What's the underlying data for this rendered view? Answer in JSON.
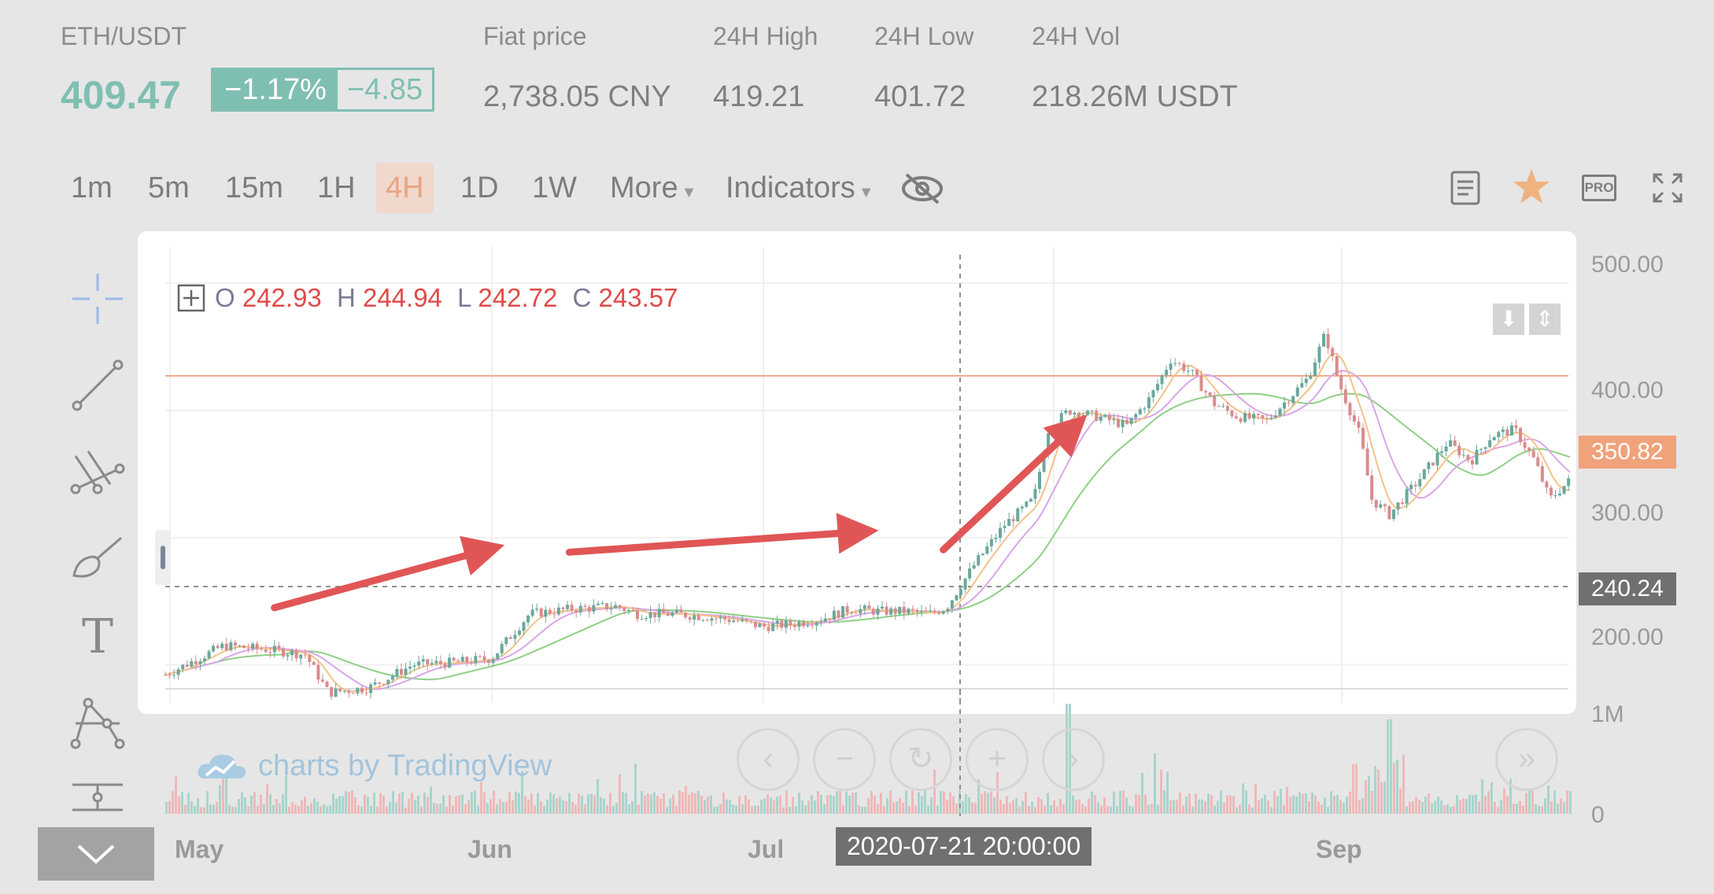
{
  "header": {
    "pair": "ETH/USDT",
    "last_price": "409.47",
    "change_pct": "−1.17%",
    "change_abs": "−4.85",
    "stats": [
      {
        "label": "Fiat price",
        "value": "2,738.05 CNY"
      },
      {
        "label": "24H High",
        "value": "419.21"
      },
      {
        "label": "24H Low",
        "value": "401.72"
      },
      {
        "label": "24H Vol",
        "value": "218.26M USDT"
      }
    ]
  },
  "toolbar": {
    "intervals": [
      "1m",
      "5m",
      "15m",
      "1H",
      "4H",
      "1D",
      "1W"
    ],
    "active_interval": "4H",
    "more_label": "More",
    "indicators_label": "Indicators",
    "right_icons": [
      "notes-icon",
      "star-icon",
      "pro-badge-icon",
      "fullscreen-icon"
    ],
    "pro_text": "PRO"
  },
  "sidebar": {
    "tools": [
      "crosshair-icon",
      "trend-line-icon",
      "pitchfork-icon",
      "brush-icon",
      "text-icon",
      "pattern-icon",
      "measure-icon"
    ],
    "text_tool_glyph": "T"
  },
  "chart": {
    "ohlc": {
      "o_label": "O",
      "o": "242.93",
      "h_label": "H",
      "h": "244.94",
      "l_label": "L",
      "l": "242.72",
      "c_label": "C",
      "c": "243.57"
    },
    "price_axis": [
      "500.00",
      "400.00",
      "300.00",
      "200.00"
    ],
    "current_price_tag": "350.82",
    "crosshair_price_tag": "240.24",
    "volume_axis": [
      "1M",
      "0"
    ],
    "time_axis": [
      "May",
      "Jun",
      "Jul",
      "Sep"
    ],
    "crosshair_time_tag": "2020-07-21 20:00:00",
    "brand": "charts by TradingView",
    "colors": {
      "up": "#7fbfb2",
      "down": "#e9a0a0",
      "arrow": "#e05656",
      "ma_green": "#8fcf86",
      "ma_purple": "#d9a6e8",
      "ma_orange": "#f3c28a",
      "hline": "#f4a98c"
    }
  },
  "chart_data": {
    "type": "line",
    "series": [
      {
        "values": [
          [
            0,
            192
          ],
          [
            20,
            215
          ],
          [
            35,
            212
          ],
          [
            48,
            208
          ],
          [
            56,
            178
          ],
          [
            70,
            182
          ],
          [
            85,
            200
          ],
          [
            100,
            202
          ],
          [
            112,
            205
          ],
          [
            125,
            240
          ],
          [
            140,
            244
          ],
          [
            155,
            246
          ],
          [
            162,
            240
          ],
          [
            175,
            240
          ],
          [
            185,
            238
          ],
          [
            195,
            235
          ],
          [
            205,
            230
          ],
          [
            215,
            232
          ],
          [
            225,
            236
          ],
          [
            235,
            244
          ],
          [
            245,
            242
          ],
          [
            255,
            242
          ],
          [
            262,
            240
          ],
          [
            268,
            245
          ],
          [
            278,
            280
          ],
          [
            288,
            310
          ],
          [
            298,
            330
          ],
          [
            303,
            385
          ],
          [
            310,
            400
          ],
          [
            320,
            395
          ],
          [
            330,
            388
          ],
          [
            338,
            410
          ],
          [
            345,
            440
          ],
          [
            352,
            430
          ],
          [
            360,
            405
          ],
          [
            368,
            395
          ],
          [
            378,
            392
          ],
          [
            392,
            425
          ],
          [
            398,
            460
          ],
          [
            403,
            420
          ],
          [
            410,
            380
          ],
          [
            414,
            330
          ],
          [
            420,
            318
          ],
          [
            430,
            345
          ],
          [
            440,
            375
          ],
          [
            448,
            360
          ],
          [
            455,
            380
          ],
          [
            463,
            385
          ],
          [
            470,
            360
          ],
          [
            475,
            330
          ],
          [
            482,
            345
          ]
        ]
      }
    ],
    "ylim": [
      170,
      510
    ]
  }
}
